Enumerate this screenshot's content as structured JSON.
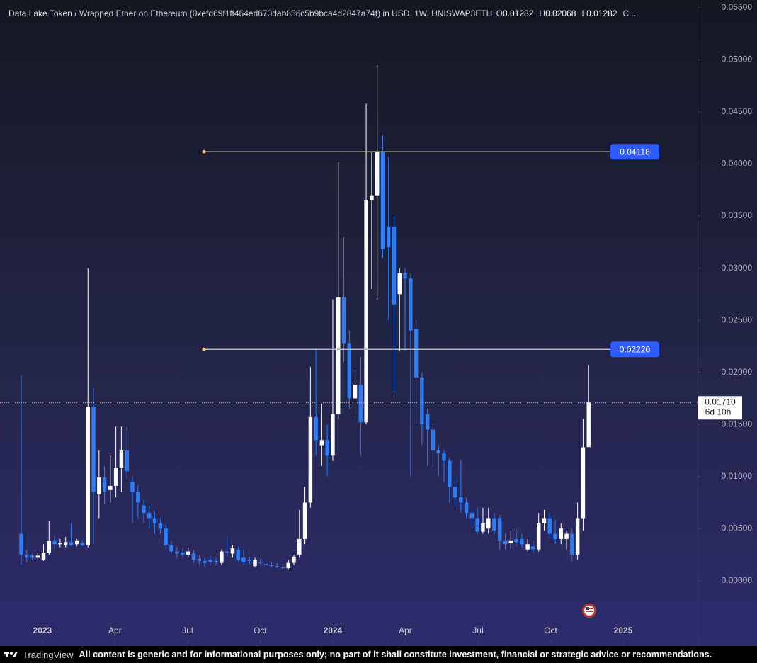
{
  "chart_data": {
    "type": "candlestick",
    "title": "Data Lake Token / Wrapped Ether on Ethereum (0xefd69f1ff464ed673dab856c5b9bca4d2847a74f) in USD, 1W, UNISWAP3ETH",
    "ohlc_letters": [
      "O",
      "H",
      "L"
    ],
    "header_tail": "C...",
    "up_color": "#ffffff",
    "down_color": "#2e7cf6",
    "x": [
      2022.927,
      2022.946,
      2022.965,
      2022.984,
      2023.004,
      2023.023,
      2023.042,
      2023.061,
      2023.08,
      2023.099,
      2023.119,
      2023.138,
      2023.157,
      2023.176,
      2023.195,
      2023.214,
      2023.234,
      2023.253,
      2023.272,
      2023.291,
      2023.31,
      2023.329,
      2023.349,
      2023.368,
      2023.387,
      2023.406,
      2023.425,
      2023.444,
      2023.463,
      2023.483,
      2023.502,
      2023.521,
      2023.54,
      2023.559,
      2023.578,
      2023.598,
      2023.617,
      2023.636,
      2023.655,
      2023.674,
      2023.693,
      2023.713,
      2023.732,
      2023.751,
      2023.77,
      2023.789,
      2023.808,
      2023.828,
      2023.847,
      2023.866,
      2023.885,
      2023.904,
      2023.923,
      2023.942,
      2023.962,
      2023.981,
      2024.0,
      2024.019,
      2024.038,
      2024.057,
      2024.077,
      2024.096,
      2024.115,
      2024.134,
      2024.153,
      2024.172,
      2024.192,
      2024.211,
      2024.23,
      2024.249,
      2024.268,
      2024.287,
      2024.307,
      2024.326,
      2024.345,
      2024.364,
      2024.383,
      2024.402,
      2024.421,
      2024.441,
      2024.46,
      2024.479,
      2024.498,
      2024.517,
      2024.536,
      2024.556,
      2024.575,
      2024.594,
      2024.613,
      2024.632,
      2024.651,
      2024.671,
      2024.69,
      2024.709,
      2024.728,
      2024.747,
      2024.766,
      2024.786,
      2024.805,
      2024.824,
      2024.843,
      2024.862,
      2024.881
    ],
    "open": [
      0.0045,
      0.0025,
      0.0024,
      0.0022,
      0.002,
      0.0027,
      0.0038,
      0.0035,
      0.0034,
      0.0037,
      0.0035,
      0.0036,
      0.0034,
      0.0167,
      0.0083,
      0.0099,
      0.0087,
      0.0091,
      0.0108,
      0.0125,
      0.0095,
      0.0085,
      0.0072,
      0.0065,
      0.006,
      0.0055,
      0.005,
      0.0034,
      0.0028,
      0.0027,
      0.0025,
      0.0026,
      0.0021,
      0.0019,
      0.002,
      0.0019,
      0.0017,
      0.0028,
      0.0026,
      0.003,
      0.0022,
      0.002,
      0.0014,
      0.0018,
      0.0016,
      0.0015,
      0.0014,
      0.0013,
      0.0012,
      0.0017,
      0.0025,
      0.004,
      0.0075,
      0.0157,
      0.013,
      0.0135,
      0.012,
      0.016,
      0.0272,
      0.0228,
      0.0175,
      0.0188,
      0.0152,
      0.0365,
      0.037,
      0.0412,
      0.034,
      0.034,
      0.0275,
      0.0295,
      0.029,
      0.0242,
      0.0195,
      0.016,
      0.0145,
      0.0125,
      0.0122,
      0.0115,
      0.009,
      0.008,
      0.0075,
      0.0065,
      0.006,
      0.0047,
      0.005,
      0.006,
      0.006,
      0.0038,
      0.0036,
      0.004,
      0.004,
      0.003,
      0.0033,
      0.003,
      0.0055,
      0.006,
      0.0045,
      0.004,
      0.004,
      0.0045,
      0.0025,
      0.006,
      0.01282
    ],
    "high": [
      0.0197,
      0.003,
      0.0026,
      0.0027,
      0.0035,
      0.0057,
      0.0043,
      0.004,
      0.0042,
      0.0055,
      0.004,
      0.0038,
      0.03,
      0.0185,
      0.0125,
      0.011,
      0.012,
      0.0148,
      0.0148,
      0.0148,
      0.01,
      0.0092,
      0.0078,
      0.0072,
      0.0066,
      0.006,
      0.0054,
      0.0038,
      0.0032,
      0.0031,
      0.0032,
      0.0029,
      0.0024,
      0.0022,
      0.0024,
      0.0022,
      0.003,
      0.0042,
      0.0034,
      0.0033,
      0.003,
      0.0023,
      0.0022,
      0.0021,
      0.0019,
      0.0018,
      0.0017,
      0.0016,
      0.002,
      0.0025,
      0.0068,
      0.009,
      0.0205,
      0.0222,
      0.017,
      0.015,
      0.027,
      0.0402,
      0.033,
      0.024,
      0.02,
      0.0215,
      0.0458,
      0.0412,
      0.0495,
      0.0428,
      0.0407,
      0.035,
      0.03,
      0.03,
      0.0295,
      0.025,
      0.02,
      0.0165,
      0.015,
      0.013,
      0.0125,
      0.0118,
      0.01,
      0.0115,
      0.008,
      0.0068,
      0.007,
      0.007,
      0.007,
      0.0065,
      0.0063,
      0.0045,
      0.0048,
      0.005,
      0.0045,
      0.004,
      0.0038,
      0.0065,
      0.0068,
      0.0065,
      0.0058,
      0.0055,
      0.0048,
      0.005,
      0.0075,
      0.0155,
      0.02068
    ],
    "low": [
      0.0015,
      0.0018,
      0.002,
      0.002,
      0.0019,
      0.0025,
      0.003,
      0.0032,
      0.0032,
      0.0033,
      0.0033,
      0.0033,
      0.0032,
      0.0035,
      0.006,
      0.0073,
      0.0075,
      0.008,
      0.0085,
      0.0098,
      0.0055,
      0.006,
      0.0055,
      0.005,
      0.0045,
      0.0045,
      0.003,
      0.0026,
      0.0022,
      0.0022,
      0.0022,
      0.0017,
      0.0016,
      0.0013,
      0.0015,
      0.0015,
      0.0015,
      0.0023,
      0.0022,
      0.0018,
      0.0015,
      0.0016,
      0.0013,
      0.0015,
      0.0014,
      0.0013,
      0.0012,
      0.0011,
      0.0011,
      0.0015,
      0.0022,
      0.0035,
      0.007,
      0.012,
      0.011,
      0.01,
      0.0115,
      0.0155,
      0.021,
      0.0165,
      0.016,
      0.012,
      0.015,
      0.028,
      0.027,
      0.031,
      0.025,
      0.018,
      0.022,
      0.022,
      0.01,
      0.015,
      0.013,
      0.011,
      0.011,
      0.01,
      0.0095,
      0.0075,
      0.007,
      0.0065,
      0.006,
      0.005,
      0.0045,
      0.0045,
      0.0045,
      0.0045,
      0.003,
      0.003,
      0.003,
      0.0033,
      0.0032,
      0.0028,
      0.0026,
      0.0028,
      0.0048,
      0.004,
      0.0035,
      0.0035,
      0.003,
      0.0018,
      0.002,
      0.0048,
      0.01282
    ],
    "close": [
      0.0025,
      0.0022,
      0.0022,
      0.0024,
      0.0027,
      0.0038,
      0.0035,
      0.0036,
      0.0037,
      0.0034,
      0.0038,
      0.0034,
      0.0167,
      0.0085,
      0.0099,
      0.0085,
      0.0091,
      0.0108,
      0.0125,
      0.0105,
      0.0085,
      0.0075,
      0.0065,
      0.006,
      0.0055,
      0.005,
      0.0034,
      0.0028,
      0.0026,
      0.0025,
      0.0028,
      0.002,
      0.0019,
      0.0017,
      0.0018,
      0.0018,
      0.0028,
      0.0027,
      0.0031,
      0.002,
      0.0018,
      0.0019,
      0.002,
      0.0017,
      0.0015,
      0.0014,
      0.0013,
      0.0012,
      0.0017,
      0.0023,
      0.004,
      0.0075,
      0.0157,
      0.0135,
      0.0135,
      0.012,
      0.016,
      0.0272,
      0.0228,
      0.0175,
      0.0188,
      0.0152,
      0.0365,
      0.037,
      0.0412,
      0.0318,
      0.032,
      0.0265,
      0.0295,
      0.029,
      0.024,
      0.0195,
      0.015,
      0.0145,
      0.0125,
      0.0122,
      0.0115,
      0.009,
      0.008,
      0.0075,
      0.0065,
      0.006,
      0.0047,
      0.0055,
      0.006,
      0.0048,
      0.0038,
      0.0035,
      0.0038,
      0.0037,
      0.0035,
      0.0035,
      0.003,
      0.0055,
      0.006,
      0.0045,
      0.004,
      0.005,
      0.0045,
      0.0025,
      0.006,
      0.0128,
      0.0171
    ],
    "last_price_label": "0.01710",
    "countdown": "6d 10h",
    "hlines": [
      {
        "value": 0.04118,
        "label": "0.04118"
      },
      {
        "value": 0.0222,
        "label": "0.02220"
      }
    ],
    "hline_color": "#2e5bff",
    "xlim": [
      2022.854,
      2025.256
    ],
    "xticks": [
      2023,
      {
        "value": 2023.25,
        "label": "Apr"
      },
      {
        "value": 2023.5,
        "label": "Jul"
      },
      {
        "value": 2023.75,
        "label": "Oct"
      },
      2024,
      {
        "value": 2024.25,
        "label": "Apr"
      },
      {
        "value": 2024.5,
        "label": "Jul"
      },
      {
        "value": 2024.75,
        "label": "Oct"
      },
      2025
    ],
    "ylim": [
      -0.0041,
      0.055
    ],
    "yticks": [
      {
        "value": 0,
        "label": "0.00000"
      },
      {
        "value": 0.005,
        "label": "0.00500"
      },
      {
        "value": 0.01,
        "label": "0.01000"
      },
      {
        "value": 0.015,
        "label": "0.01500"
      },
      {
        "value": 0.02,
        "label": "0.02000"
      },
      {
        "value": 0.025,
        "label": "0.02500"
      },
      {
        "value": 0.03,
        "label": "0.03000"
      },
      {
        "value": 0.035,
        "label": "0.03500"
      },
      {
        "value": 0.04,
        "label": "0.04000"
      },
      {
        "value": 0.045,
        "label": "0.04500"
      },
      {
        "value": 0.05,
        "label": "0.05000"
      },
      {
        "value": 0.055,
        "label": "0.05500"
      }
    ]
  },
  "footer": {
    "brand": "TradingView",
    "disclaimer": "All content is generic and for informational purposes only; no part of it shall constitute investment, financial or strategic advice or recommendations."
  }
}
